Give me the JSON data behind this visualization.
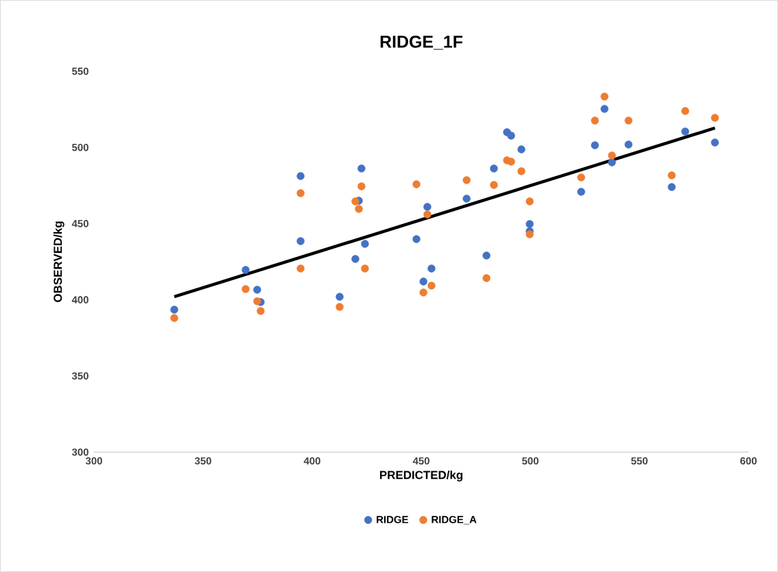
{
  "chart_data": {
    "type": "scatter",
    "title": "RIDGE_1F",
    "xlabel": "PREDICTED/kg",
    "ylabel": "OBSERVED/kg",
    "xlim": [
      300,
      600
    ],
    "xticks": [
      300,
      350,
      400,
      450,
      500,
      550,
      600
    ],
    "ylim": [
      300,
      550
    ],
    "yticks": [
      300,
      350,
      400,
      450,
      500,
      550
    ],
    "legend": "bottom",
    "marker": "circle",
    "series": [
      {
        "name": "RIDGE",
        "color": "#4472c4",
        "x": [
          336.8,
          369.5,
          374.8,
          376.4,
          394.7,
          394.7,
          412.6,
          419.8,
          421.4,
          422.6,
          424.2,
          447.8,
          451,
          452.8,
          454.7,
          470.8,
          479.9,
          483.3,
          489.3,
          491.2,
          495.9,
          499.7,
          499.7,
          523.3,
          529.6,
          534,
          537.4,
          545,
          564.8,
          571,
          584.6
        ],
        "values": [
          393.5,
          419.6,
          406.6,
          398.5,
          481.2,
          438.5,
          402,
          426.8,
          465,
          486.2,
          436.7,
          439.8,
          412,
          461,
          420.5,
          466.4,
          429,
          486.2,
          510,
          507.7,
          498.7,
          449.7,
          445,
          470.9,
          501.4,
          525.3,
          490.2,
          501.9,
          474,
          510.4,
          503.2
        ]
      },
      {
        "name": "RIDGE_A",
        "color": "#ed7d31",
        "x": [
          336.8,
          369.5,
          374.8,
          376.4,
          394.7,
          394.7,
          412.6,
          419.8,
          421.4,
          422.6,
          424.2,
          447.8,
          451,
          452.8,
          454.7,
          470.8,
          479.9,
          483.3,
          489.3,
          491.2,
          495.9,
          499.7,
          499.7,
          523.3,
          529.6,
          534,
          537.4,
          545,
          564.8,
          571,
          584.6
        ],
        "values": [
          388,
          407,
          399,
          392.6,
          470,
          420.5,
          395.3,
          464.6,
          459.6,
          474.5,
          420.5,
          475.8,
          404.8,
          456,
          409.3,
          478.5,
          414.2,
          475.4,
          491.5,
          490.6,
          484.4,
          464.6,
          443,
          480.3,
          517.6,
          533.4,
          494.7,
          517.6,
          481.7,
          523.9,
          519.4
        ]
      },
      {
        "type": "line",
        "color": "#000000",
        "marker": "none",
        "x": [
          336.8,
          584.6
        ],
        "values": [
          402,
          512.7
        ]
      }
    ]
  }
}
